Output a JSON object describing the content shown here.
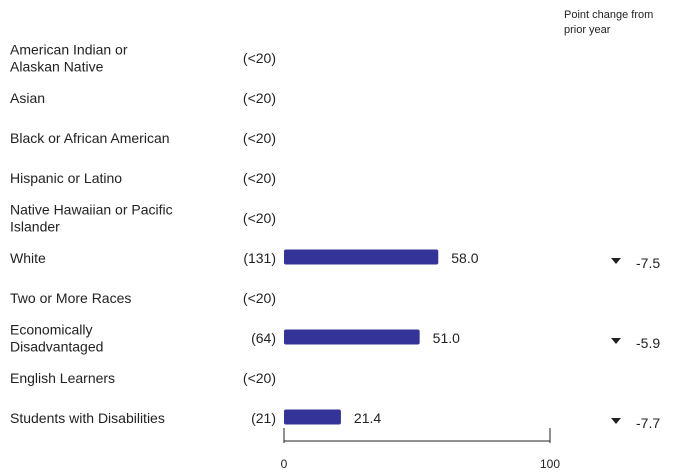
{
  "header": {
    "change_line1": "Point change from",
    "change_line2": "prior year"
  },
  "colors": {
    "bar": "#333399",
    "text": "#222222",
    "axis": "#222222"
  },
  "chart_data": {
    "type": "bar",
    "orientation": "horizontal",
    "xlim": [
      0,
      100
    ],
    "x_ticks": [
      "0",
      "100"
    ],
    "grid": false,
    "categories": [
      {
        "label": [
          "American Indian or",
          "Alaskan Native"
        ],
        "count": "(<20)",
        "value": null,
        "value_label": "",
        "change": null,
        "change_label": ""
      },
      {
        "label": [
          "Asian"
        ],
        "count": "(<20)",
        "value": null,
        "value_label": "",
        "change": null,
        "change_label": ""
      },
      {
        "label": [
          "Black or African American"
        ],
        "count": "(<20)",
        "value": null,
        "value_label": "",
        "change": null,
        "change_label": ""
      },
      {
        "label": [
          "Hispanic or Latino"
        ],
        "count": "(<20)",
        "value": null,
        "value_label": "",
        "change": null,
        "change_label": ""
      },
      {
        "label": [
          "Native Hawaiian or Pacific",
          "Islander"
        ],
        "count": "(<20)",
        "value": null,
        "value_label": "",
        "change": null,
        "change_label": ""
      },
      {
        "label": [
          "White"
        ],
        "count": "(131)",
        "value": 58.0,
        "value_label": "58.0",
        "change": -7.5,
        "change_label": "-7.5"
      },
      {
        "label": [
          "Two or More Races"
        ],
        "count": "(<20)",
        "value": null,
        "value_label": "",
        "change": null,
        "change_label": ""
      },
      {
        "label": [
          "Economically",
          "Disadvantaged"
        ],
        "count": "(64)",
        "value": 51.0,
        "value_label": "51.0",
        "change": -5.9,
        "change_label": "-5.9"
      },
      {
        "label": [
          "English Learners"
        ],
        "count": "(<20)",
        "value": null,
        "value_label": "",
        "change": null,
        "change_label": ""
      },
      {
        "label": [
          "Students with Disabilities"
        ],
        "count": "(21)",
        "value": 21.4,
        "value_label": "21.4",
        "change": -7.7,
        "change_label": "-7.7"
      }
    ]
  }
}
